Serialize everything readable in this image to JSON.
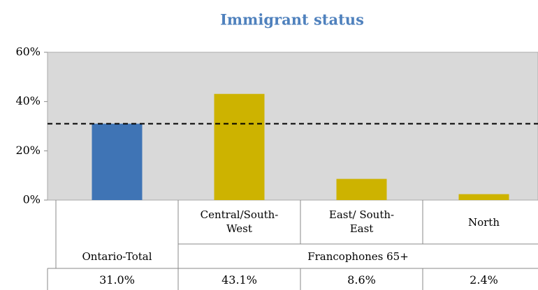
{
  "chart_data": {
    "type": "bar",
    "title": "Immigrant status",
    "categories": [
      "Ontario-Total",
      "Central/South-West",
      "East/ South-East",
      "North"
    ],
    "group_label": "Francophones 65+",
    "values": [
      31.0,
      43.1,
      8.6,
      2.4
    ],
    "value_labels": [
      "31.0%",
      "43.1%",
      "8.6%",
      "2.4%"
    ],
    "colors": [
      "#3f74b5",
      "#cdb300",
      "#cdb300",
      "#cdb300"
    ],
    "reference_line": 31,
    "ylim": [
      0,
      60
    ],
    "yticks": [
      {
        "value": 0,
        "label": "0%"
      },
      {
        "value": 20,
        "label": "20%"
      },
      {
        "value": 40,
        "label": "40%"
      },
      {
        "value": 60,
        "label": "60%"
      }
    ]
  }
}
